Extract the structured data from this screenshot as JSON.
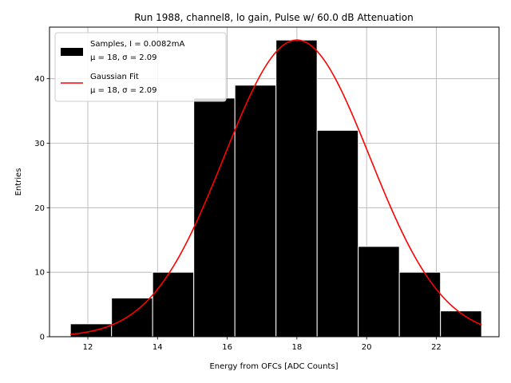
{
  "chart_data": {
    "type": "histogram",
    "title": "Run 1988, channel8, lo gain, Pulse w/ 60.0 dB Attenuation",
    "xlabel": "Energy from OFCs [ADC Counts]",
    "ylabel": "Entries",
    "xlim": [
      10.9,
      23.8
    ],
    "ylim": [
      0,
      48
    ],
    "xticks": [
      12,
      14,
      16,
      18,
      20,
      22
    ],
    "yticks": [
      0,
      10,
      20,
      30,
      40
    ],
    "grid": true,
    "bins": [
      {
        "x0": 11.5,
        "x1": 12.68,
        "count": 2
      },
      {
        "x0": 12.68,
        "x1": 13.86,
        "count": 6
      },
      {
        "x0": 13.86,
        "x1": 15.04,
        "count": 10
      },
      {
        "x0": 15.04,
        "x1": 16.22,
        "count": 37
      },
      {
        "x0": 16.22,
        "x1": 17.4,
        "count": 39
      },
      {
        "x0": 17.4,
        "x1": 18.58,
        "count": 46
      },
      {
        "x0": 18.58,
        "x1": 19.76,
        "count": 32
      },
      {
        "x0": 19.76,
        "x1": 20.94,
        "count": 14
      },
      {
        "x0": 20.94,
        "x1": 22.12,
        "count": 10
      },
      {
        "x0": 22.12,
        "x1": 23.3,
        "count": 4
      }
    ],
    "fit": {
      "mu": 18.0,
      "sigma": 2.09,
      "amplitude": 46.0,
      "x_range": [
        11.5,
        23.3
      ]
    },
    "legend": {
      "location": "upper-left",
      "entries": [
        {
          "line1": "Samples, I = 0.0082mA",
          "line2": "μ = 18, σ = 2.09",
          "color": "#000000",
          "kind": "patch"
        },
        {
          "line1": "Gaussian Fit",
          "line2": "μ = 18, σ = 2.09",
          "color": "#ff0000",
          "kind": "line"
        }
      ]
    }
  }
}
